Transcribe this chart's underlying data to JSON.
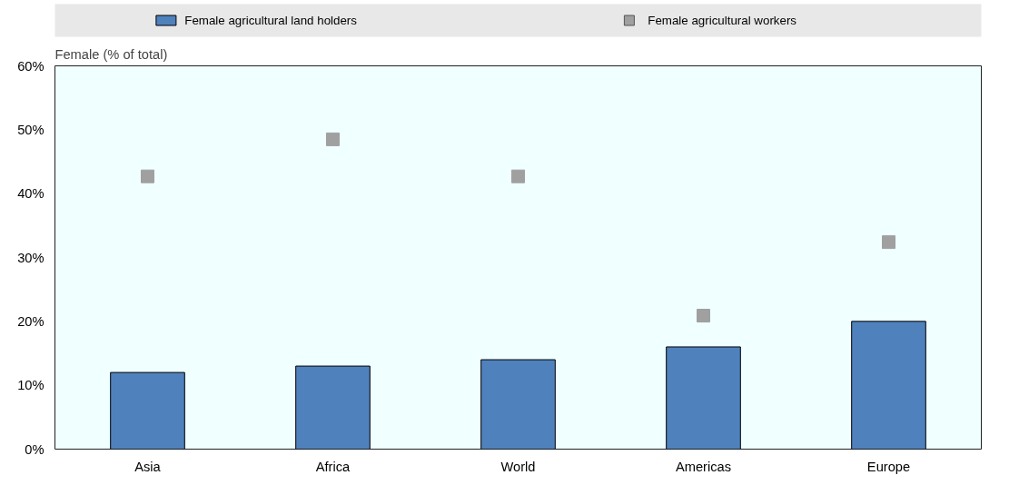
{
  "chart_data": {
    "type": "bar",
    "ylabel": "Female (% of total)",
    "categories": [
      "Asia",
      "Africa",
      "World",
      "Americas",
      "Europe"
    ],
    "series": [
      {
        "name": "Female agricultural land holders",
        "color": "#4f81bd",
        "values": [
          12,
          13,
          14,
          16,
          20
        ]
      },
      {
        "name": "Female agricultural workers",
        "type": "scatter",
        "color": "#a0a0a0",
        "marker": "square",
        "values": [
          42.7,
          48.5,
          42.7,
          20.9,
          32.4
        ]
      }
    ],
    "ylim": [
      0,
      60
    ],
    "yticks": [
      {
        "value": 0,
        "label": "0%"
      },
      {
        "value": 10,
        "label": "10%"
      },
      {
        "value": 20,
        "label": "20%"
      },
      {
        "value": 30,
        "label": "30%"
      },
      {
        "value": 40,
        "label": "40%"
      },
      {
        "value": 50,
        "label": "50%"
      },
      {
        "value": 60,
        "label": "60%"
      }
    ],
    "legend": "top"
  }
}
